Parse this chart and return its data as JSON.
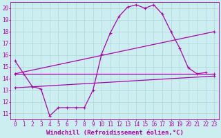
{
  "xlabel": "Windchill (Refroidissement éolien,°C)",
  "xlim": [
    -0.5,
    23.5
  ],
  "ylim": [
    10.5,
    20.5
  ],
  "yticks": [
    11,
    12,
    13,
    14,
    15,
    16,
    17,
    18,
    19,
    20
  ],
  "xticks": [
    0,
    1,
    2,
    3,
    4,
    5,
    6,
    7,
    8,
    9,
    10,
    11,
    12,
    13,
    14,
    15,
    16,
    17,
    18,
    19,
    20,
    21,
    22,
    23
  ],
  "background_color": "#cceef0",
  "grid_color": "#aad8dc",
  "line_color": "#aa00aa",
  "line1_x": [
    0,
    1,
    2,
    3,
    4,
    5,
    6,
    7,
    8,
    9,
    10,
    11,
    12,
    13,
    14,
    15,
    16,
    17,
    18,
    19,
    20,
    21,
    22
  ],
  "line1_y": [
    15.5,
    14.4,
    13.3,
    13.1,
    10.8,
    11.5,
    11.5,
    11.5,
    11.5,
    13.0,
    16.1,
    17.9,
    19.3,
    20.1,
    20.3,
    20.0,
    20.3,
    19.5,
    18.0,
    16.6,
    14.9,
    14.4,
    14.5
  ],
  "line2_x": [
    0,
    23
  ],
  "line2_y": [
    14.4,
    14.4
  ],
  "line3_x": [
    0,
    23
  ],
  "line3_y": [
    13.2,
    14.2
  ],
  "line4_x": [
    0,
    23
  ],
  "line4_y": [
    14.4,
    18.0
  ],
  "tick_font_size": 5.5,
  "xlabel_font_size": 6.5,
  "lw": 0.9,
  "marker_size": 2.5
}
